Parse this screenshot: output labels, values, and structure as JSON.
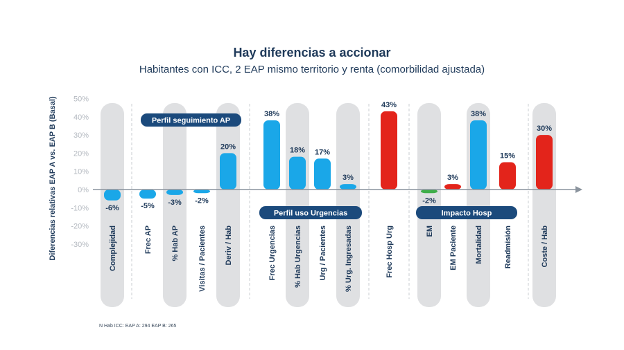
{
  "header": {
    "title": "Hay diferencias a accionar",
    "subtitle": "Habitantes con ICC, 2 EAP mismo territorio y renta (comorbilidad ajustada)"
  },
  "footnote": "N Hab ICC: EAP A: 294 EAP B: 265",
  "colors": {
    "blue": "#1aa7e8",
    "red": "#e3241b",
    "green": "#3fae49",
    "navy": "#1b4a7c",
    "bg_column": "#dfe0e2",
    "text": "#1f3a5a",
    "red_label": "#e3241b"
  },
  "chart_data": {
    "type": "bar",
    "title": "Hay diferencias a accionar",
    "subtitle": "Habitantes con ICC, 2 EAP mismo territorio y renta (comorbilidad ajustada)",
    "ylabel": "Diferencias relativas EAP A vs. EAP B (Basal)",
    "ylim": [
      -30,
      50
    ],
    "yticks": [
      "50%",
      "40%",
      "30%",
      "20%",
      "10%",
      "0%",
      "-10%",
      "-20%",
      "-30%"
    ],
    "grid": false,
    "categories": [
      "Complejidad",
      "Frec AP",
      "% Hab AP",
      "Visitas / Pacientes",
      "Deriv / Hab",
      "Frec Urgencias",
      "% Hab Urgencias",
      "Urg / Pacientes",
      "% Urg. Ingresadas",
      "Frec Hosp Urg",
      "EM",
      "EM Paciente",
      "Mortalidad",
      "Readmisión",
      "Coste / Hab"
    ],
    "values": [
      -6,
      -5,
      -3,
      -2,
      20,
      38,
      18,
      17,
      3,
      43,
      -2,
      3,
      38,
      15,
      30
    ],
    "value_labels": [
      "-6%",
      "-5%",
      "-3%",
      "-2%",
      "20%",
      "38%",
      "18%",
      "17%",
      "3%",
      "43%",
      "-2%",
      "3%",
      "38%",
      "15%",
      "30%"
    ],
    "bar_colors": [
      "blue",
      "blue",
      "blue",
      "blue",
      "blue",
      "blue",
      "blue",
      "blue",
      "blue",
      "red",
      "green",
      "red",
      "blue",
      "red",
      "red"
    ],
    "shaded_categories": [
      0,
      2,
      4,
      6,
      8,
      10,
      12,
      14
    ],
    "groups": [
      {
        "label": "Perfil seguimiento AP",
        "categories": [
          0,
          1,
          2,
          3,
          4
        ]
      },
      {
        "label": "Perfil uso Urgencias",
        "categories": [
          5,
          6,
          7,
          8
        ]
      },
      {
        "label": "Impacto Hosp",
        "categories": [
          10,
          11,
          12,
          13
        ]
      }
    ]
  }
}
